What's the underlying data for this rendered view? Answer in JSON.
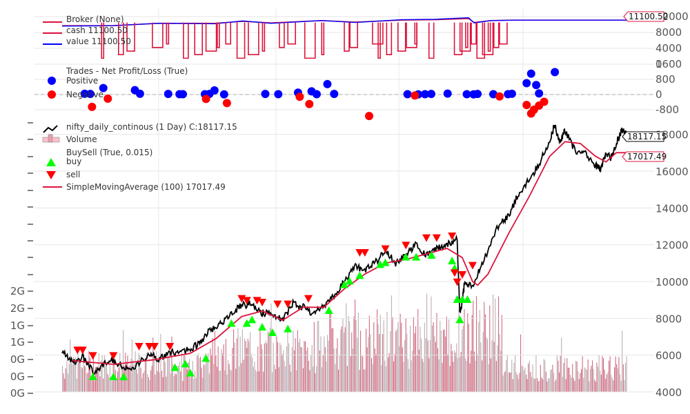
{
  "chart_data": [
    {
      "type": "line",
      "panel": "broker",
      "legend": [
        {
          "label": "Broker (None)",
          "color": "#dc143c"
        },
        {
          "label": "cash 11100.50",
          "color": "#dc143c"
        },
        {
          "label": "value 11100.50",
          "color": "#0000ff"
        }
      ],
      "yticks": [
        "0",
        "4000",
        "8000",
        "12000"
      ],
      "ylim": [
        0,
        12000
      ],
      "last_value_tag": "11100.50",
      "series": [
        {
          "name": "cash",
          "color": "#dc143c",
          "points": [
            [
              0,
              9700
            ],
            [
              0.09,
              9700
            ],
            [
              0.17,
              10300
            ],
            [
              0.27,
              10300
            ],
            [
              0.32,
              10800
            ],
            [
              0.37,
              10400
            ],
            [
              0.46,
              11000
            ],
            [
              0.52,
              10600
            ],
            [
              0.6,
              11100
            ],
            [
              0.66,
              11200
            ],
            [
              0.72,
              11500
            ],
            [
              0.73,
              10500
            ],
            [
              0.76,
              11000
            ],
            [
              0.8,
              11100
            ],
            [
              1,
              11100
            ]
          ]
        },
        {
          "name": "value",
          "color": "#0000ff",
          "points": [
            [
              0,
              9600
            ],
            [
              0.09,
              9700
            ],
            [
              0.17,
              10300
            ],
            [
              0.27,
              10200
            ],
            [
              0.32,
              10900
            ],
            [
              0.37,
              10300
            ],
            [
              0.46,
              11000
            ],
            [
              0.52,
              10500
            ],
            [
              0.6,
              11200
            ],
            [
              0.66,
              11300
            ],
            [
              0.72,
              11700
            ],
            [
              0.73,
              10400
            ],
            [
              0.76,
              11000
            ],
            [
              0.8,
              11100
            ],
            [
              1,
              11100
            ]
          ]
        }
      ],
      "dips": [
        0.07,
        0.1,
        0.115,
        0.16,
        0.185,
        0.215,
        0.235,
        0.255,
        0.275,
        0.29,
        0.31,
        0.33,
        0.355,
        0.385,
        0.4,
        0.43,
        0.46,
        0.5,
        0.51,
        0.55,
        0.56,
        0.575,
        0.595,
        0.61,
        0.625,
        0.65,
        0.695,
        0.705,
        0.715,
        0.725,
        0.735,
        0.745,
        0.755,
        0.765,
        0.775
      ]
    },
    {
      "type": "scatter",
      "panel": "trades",
      "legend": [
        {
          "label": "Trades - Net Profit/Loss (True)",
          "color": null
        },
        {
          "label": "Positive",
          "color": "#0000ff"
        },
        {
          "label": "Negative",
          "color": "#ff0000"
        }
      ],
      "yticks": [
        "-800",
        "0",
        "800",
        "1600"
      ],
      "ylim": [
        -1200,
        1600
      ],
      "positive": [
        [
          0.04,
          40
        ],
        [
          0.05,
          30
        ],
        [
          0.073,
          340
        ],
        [
          0.129,
          230
        ],
        [
          0.138,
          40
        ],
        [
          0.188,
          30
        ],
        [
          0.208,
          20
        ],
        [
          0.214,
          20
        ],
        [
          0.253,
          20
        ],
        [
          0.261,
          30
        ],
        [
          0.27,
          220
        ],
        [
          0.287,
          10
        ],
        [
          0.36,
          30
        ],
        [
          0.383,
          20
        ],
        [
          0.418,
          100
        ],
        [
          0.442,
          170
        ],
        [
          0.451,
          20
        ],
        [
          0.47,
          550
        ],
        [
          0.482,
          30
        ],
        [
          0.612,
          20
        ],
        [
          0.631,
          10
        ],
        [
          0.643,
          20
        ],
        [
          0.654,
          30
        ],
        [
          0.683,
          50
        ],
        [
          0.717,
          20
        ],
        [
          0.729,
          10
        ],
        [
          0.736,
          30
        ],
        [
          0.764,
          20
        ],
        [
          0.79,
          20
        ],
        [
          0.797,
          40
        ],
        [
          0.823,
          600
        ],
        [
          0.831,
          1100
        ],
        [
          0.84,
          500
        ],
        [
          0.845,
          60
        ],
        [
          0.873,
          1180
        ]
      ],
      "negative": [
        [
          0.053,
          -650
        ],
        [
          0.081,
          -220
        ],
        [
          0.255,
          -230
        ],
        [
          0.292,
          -450
        ],
        [
          0.421,
          -120
        ],
        [
          0.438,
          -500
        ],
        [
          0.544,
          -1130
        ],
        [
          0.625,
          -50
        ],
        [
          0.775,
          -100
        ],
        [
          0.823,
          -550
        ],
        [
          0.831,
          -1000
        ],
        [
          0.836,
          -800
        ],
        [
          0.845,
          -580
        ],
        [
          0.854,
          -380
        ]
      ]
    },
    {
      "type": "line",
      "panel": "price",
      "legend": [
        {
          "label": "nifty_daily_continous (1 Day) C:18117.15",
          "color": "#000000"
        },
        {
          "label": "Volume",
          "color": "#ffc0cb"
        },
        {
          "label": "BuySell (True, 0.015)",
          "color": null
        },
        {
          "label": "buy",
          "color": "#00ff00"
        },
        {
          "label": "sell",
          "color": "#ff0000"
        },
        {
          "label": "SimpleMovingAverage (100) 17017.49",
          "color": "#dc143c"
        }
      ],
      "yticks_right": [
        "4000",
        "6000",
        "8000",
        "10000",
        "12000",
        "14000",
        "16000",
        "18000"
      ],
      "ylim_right": [
        4000,
        18700
      ],
      "yticks_left": [
        "0G",
        "0G",
        "0G",
        "1G",
        "1G",
        "2G",
        "2G"
      ],
      "last_close_tag": "18117.15",
      "last_sma_tag": "17017.49",
      "close": [
        [
          0,
          6200
        ],
        [
          0.02,
          5600
        ],
        [
          0.04,
          5900
        ],
        [
          0.06,
          5100
        ],
        [
          0.08,
          5500
        ],
        [
          0.1,
          5700
        ],
        [
          0.12,
          5300
        ],
        [
          0.14,
          5400
        ],
        [
          0.17,
          6000
        ],
        [
          0.19,
          5800
        ],
        [
          0.21,
          6100
        ],
        [
          0.23,
          6200
        ],
        [
          0.25,
          6300
        ],
        [
          0.27,
          6700
        ],
        [
          0.29,
          7400
        ],
        [
          0.31,
          7700
        ],
        [
          0.33,
          8300
        ],
        [
          0.35,
          8700
        ],
        [
          0.37,
          8800
        ],
        [
          0.39,
          8300
        ],
        [
          0.41,
          8200
        ],
        [
          0.43,
          7900
        ],
        [
          0.45,
          8800
        ],
        [
          0.47,
          8600
        ],
        [
          0.49,
          8200
        ],
        [
          0.51,
          8700
        ],
        [
          0.53,
          9200
        ],
        [
          0.55,
          10000
        ],
        [
          0.57,
          10800
        ],
        [
          0.59,
          10600
        ],
        [
          0.61,
          11000
        ],
        [
          0.63,
          11700
        ],
        [
          0.65,
          11000
        ],
        [
          0.67,
          11500
        ],
        [
          0.69,
          12000
        ],
        [
          0.71,
          11400
        ],
        [
          0.73,
          11800
        ],
        [
          0.75,
          12000
        ],
        [
          0.77,
          12300
        ],
        [
          0.775,
          8200
        ],
        [
          0.78,
          9000
        ],
        [
          0.785,
          10000
        ],
        [
          0.8,
          9800
        ],
        [
          0.82,
          11000
        ],
        [
          0.85,
          13000
        ],
        [
          0.87,
          13600
        ],
        [
          0.89,
          14800
        ],
        [
          0.91,
          15500
        ],
        [
          0.93,
          16400
        ],
        [
          0.95,
          17600
        ],
        [
          0.96,
          18500
        ],
        [
          0.97,
          17500
        ],
        [
          0.98,
          18200
        ],
        [
          1,
          17100
        ],
        [
          1.02,
          17000
        ],
        [
          1.04,
          16300
        ],
        [
          1.05,
          16100
        ],
        [
          1.06,
          17000
        ],
        [
          1.07,
          16700
        ],
        [
          1.08,
          17500
        ],
        [
          1.09,
          18200
        ],
        [
          1.1,
          18100
        ]
      ],
      "sma": [
        [
          0.02,
          5700
        ],
        [
          0.1,
          5500
        ],
        [
          0.18,
          5750
        ],
        [
          0.25,
          6100
        ],
        [
          0.3,
          6900
        ],
        [
          0.35,
          8100
        ],
        [
          0.39,
          8400
        ],
        [
          0.43,
          7900
        ],
        [
          0.47,
          8600
        ],
        [
          0.51,
          8600
        ],
        [
          0.55,
          9600
        ],
        [
          0.59,
          10400
        ],
        [
          0.63,
          11000
        ],
        [
          0.67,
          11200
        ],
        [
          0.71,
          11500
        ],
        [
          0.75,
          11800
        ],
        [
          0.78,
          11300
        ],
        [
          0.8,
          10000
        ],
        [
          0.81,
          9800
        ],
        [
          0.83,
          10400
        ],
        [
          0.87,
          12600
        ],
        [
          0.91,
          14600
        ],
        [
          0.95,
          16800
        ],
        [
          0.98,
          17600
        ],
        [
          1.01,
          17500
        ],
        [
          1.04,
          16800
        ],
        [
          1.06,
          16500
        ],
        [
          1.08,
          17000
        ],
        [
          1.1,
          17000
        ]
      ],
      "buy": [
        [
          0.06,
          5200
        ],
        [
          0.1,
          5200
        ],
        [
          0.12,
          5200
        ],
        [
          0.22,
          5700
        ],
        [
          0.24,
          5900
        ],
        [
          0.25,
          5400
        ],
        [
          0.28,
          6200
        ],
        [
          0.33,
          8100
        ],
        [
          0.36,
          8100
        ],
        [
          0.37,
          8300
        ],
        [
          0.39,
          7900
        ],
        [
          0.41,
          7600
        ],
        [
          0.44,
          7800
        ],
        [
          0.52,
          8800
        ],
        [
          0.55,
          10200
        ],
        [
          0.56,
          10400
        ],
        [
          0.58,
          10700
        ],
        [
          0.62,
          11300
        ],
        [
          0.63,
          11400
        ],
        [
          0.67,
          11700
        ],
        [
          0.69,
          11700
        ],
        [
          0.72,
          11800
        ],
        [
          0.76,
          11500
        ],
        [
          0.765,
          11100
        ],
        [
          0.77,
          9400
        ],
        [
          0.775,
          8300
        ],
        [
          0.78,
          9400
        ],
        [
          0.79,
          9400
        ]
      ],
      "sell": [
        [
          0.03,
          5900
        ],
        [
          0.04,
          5900
        ],
        [
          0.06,
          5600
        ],
        [
          0.1,
          5600
        ],
        [
          0.15,
          6100
        ],
        [
          0.17,
          6100
        ],
        [
          0.18,
          6100
        ],
        [
          0.21,
          6100
        ],
        [
          0.35,
          8700
        ],
        [
          0.36,
          8600
        ],
        [
          0.38,
          8600
        ],
        [
          0.39,
          8500
        ],
        [
          0.42,
          8400
        ],
        [
          0.44,
          8400
        ],
        [
          0.48,
          8700
        ],
        [
          0.58,
          11200
        ],
        [
          0.59,
          11200
        ],
        [
          0.63,
          11400
        ],
        [
          0.67,
          11600
        ],
        [
          0.71,
          12000
        ],
        [
          0.73,
          12000
        ],
        [
          0.76,
          12100
        ],
        [
          0.765,
          10100
        ],
        [
          0.77,
          9600
        ],
        [
          0.78,
          10000
        ],
        [
          0.8,
          10500
        ]
      ],
      "x_domain": [
        0,
        1.1
      ]
    }
  ]
}
